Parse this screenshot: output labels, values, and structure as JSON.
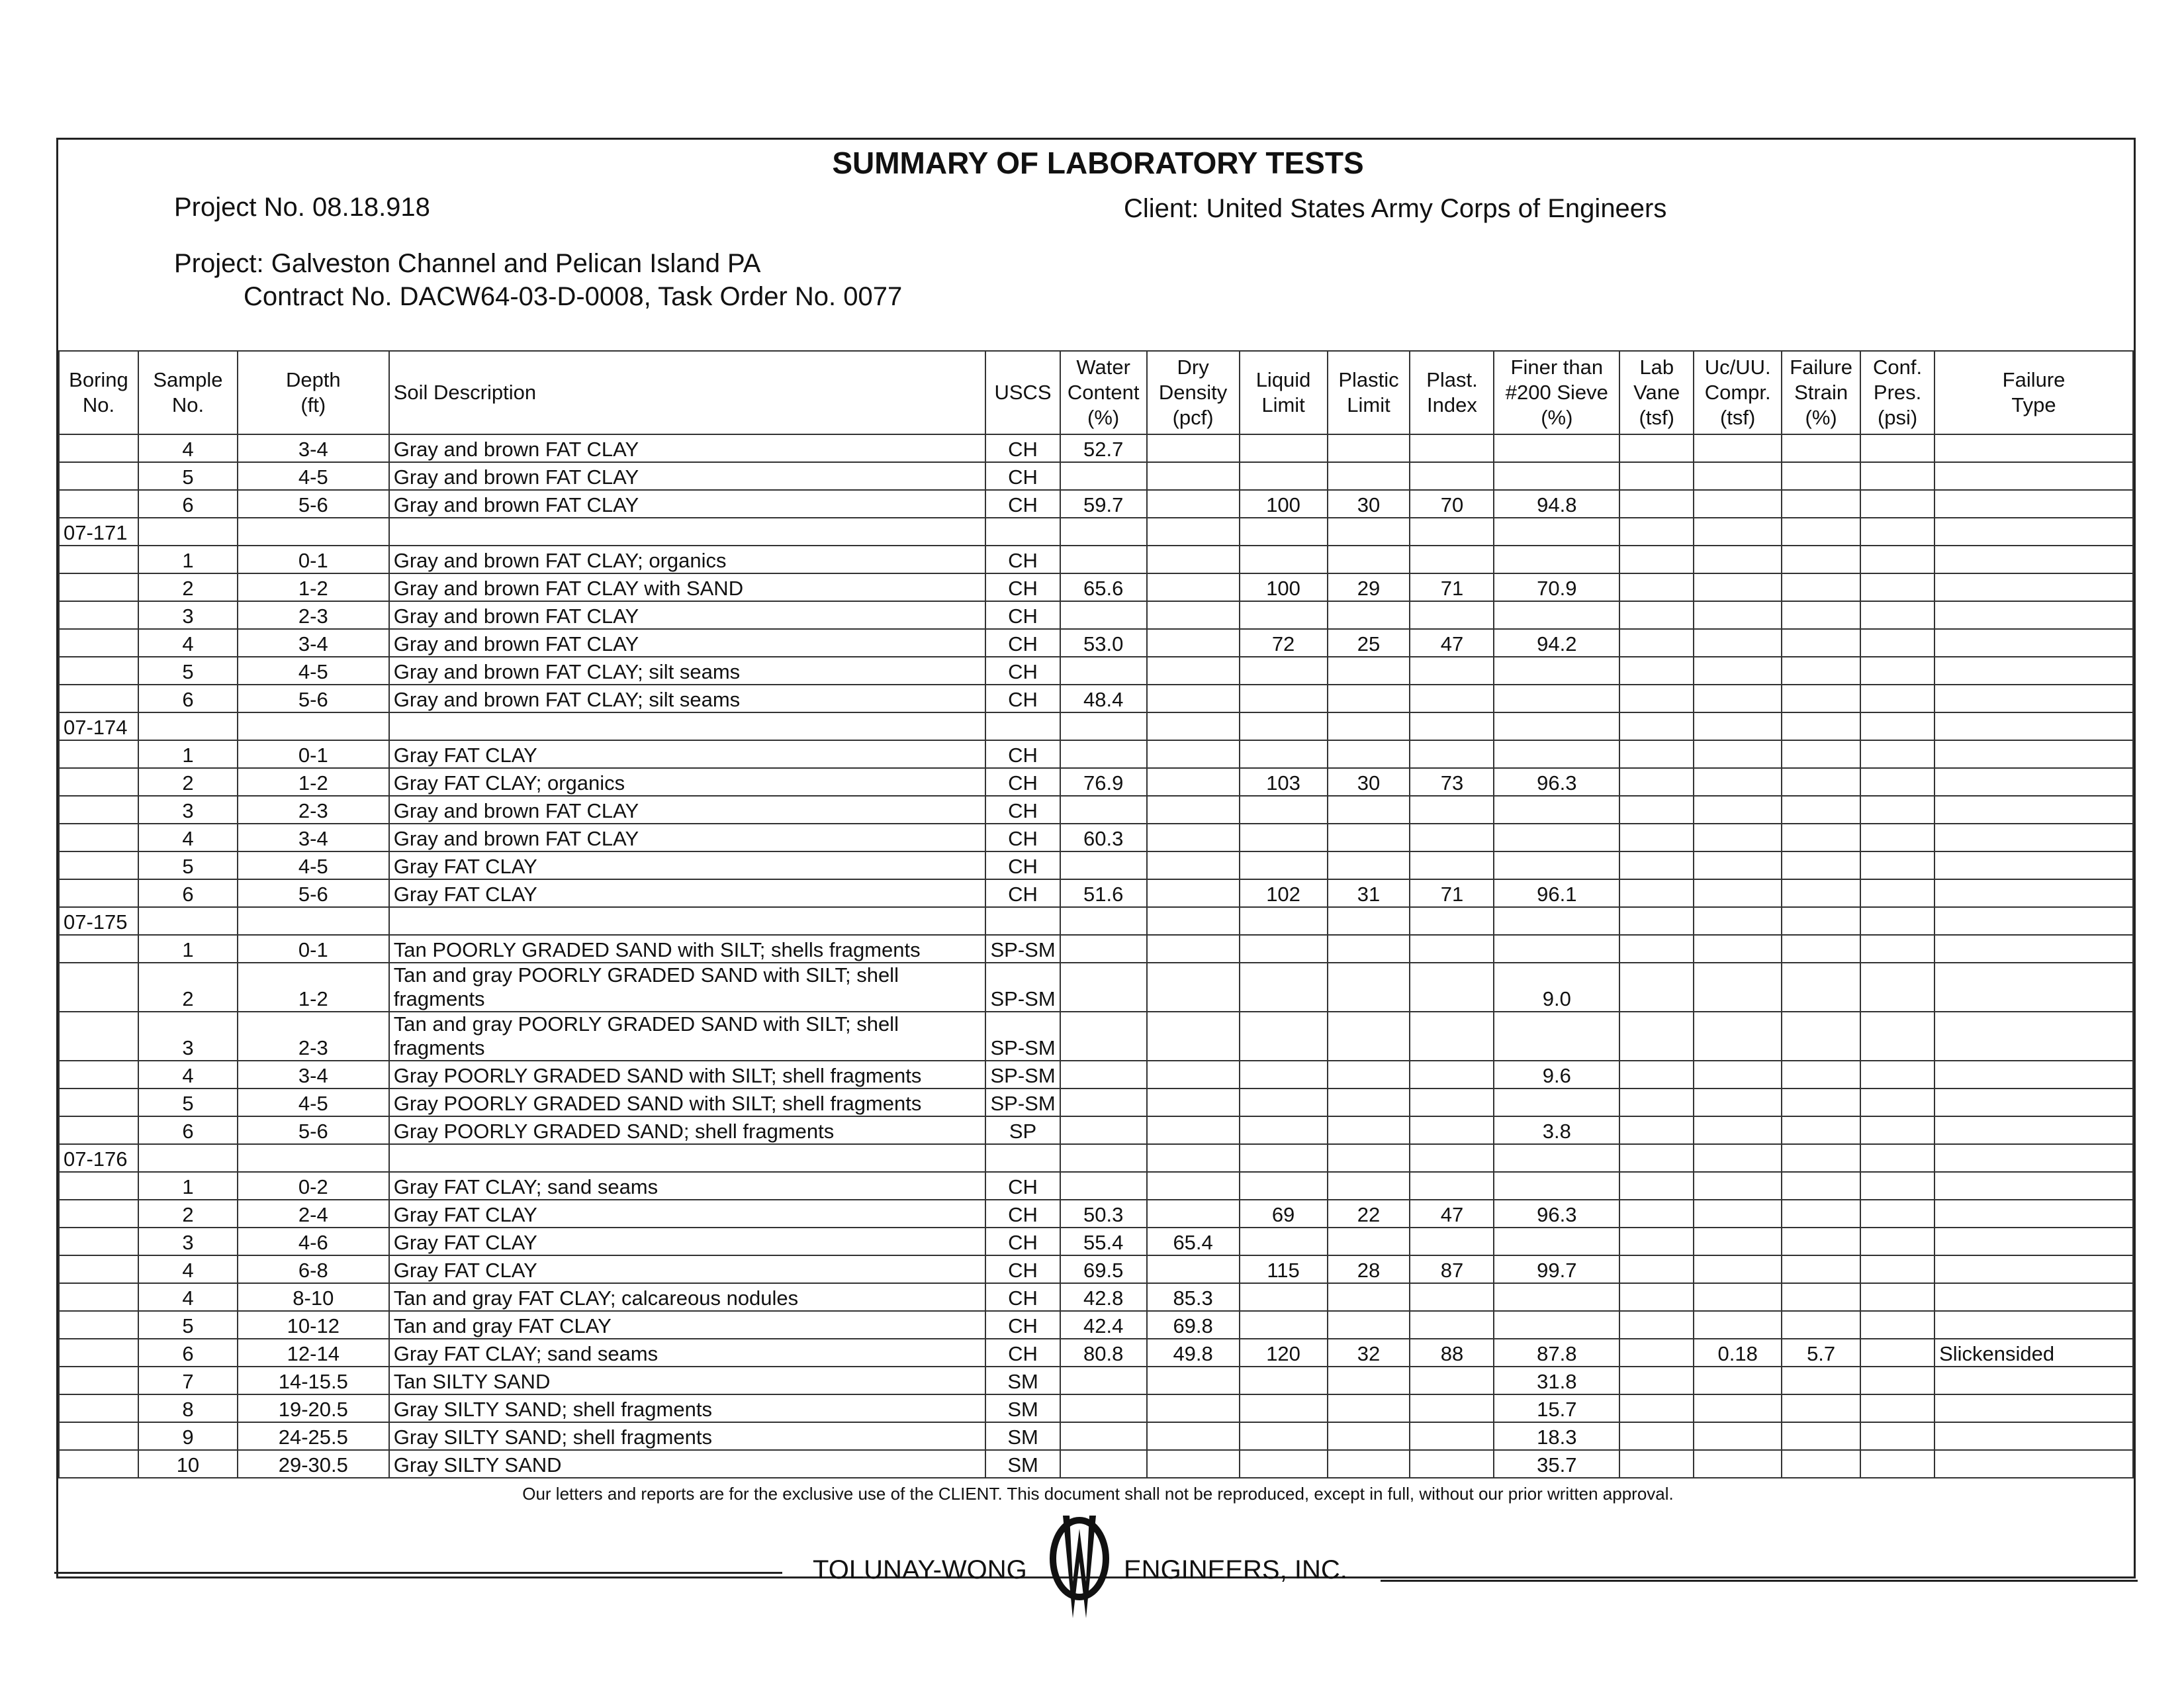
{
  "title": "SUMMARY OF LABORATORY TESTS",
  "project_no": "Project No. 08.18.918",
  "client": "Client: United States Army Corps of Engineers",
  "project": "Project: Galveston Channel and Pelican Island PA",
  "contract": "Contract No. DACW64-03-D-0008, Task Order No. 0077",
  "columns": [
    "Boring\nNo.",
    "Sample\nNo.",
    "Depth\n(ft)",
    "Soil Description",
    "USCS",
    "Water\nContent\n(%)",
    "Dry\nDensity\n(pcf)",
    "Liquid\nLimit",
    "Plastic\nLimit",
    "Plast.\nIndex",
    "Finer than\n#200 Sieve\n(%)",
    "Lab\nVane\n(tsf)",
    "Uc/UU.\nCompr.\n(tsf)",
    "Failure\nStrain\n(%)",
    "Conf.\nPres.\n(psi)",
    "Failure\nType"
  ],
  "rows": [
    [
      "",
      "4",
      "3-4",
      "Gray and brown FAT CLAY",
      "CH",
      "52.7",
      "",
      "",
      "",
      "",
      "",
      "",
      "",
      "",
      "",
      ""
    ],
    [
      "",
      "5",
      "4-5",
      "Gray and brown FAT CLAY",
      "CH",
      "",
      "",
      "",
      "",
      "",
      "",
      "",
      "",
      "",
      "",
      ""
    ],
    [
      "",
      "6",
      "5-6",
      "Gray and brown FAT CLAY",
      "CH",
      "59.7",
      "",
      "100",
      "30",
      "70",
      "94.8",
      "",
      "",
      "",
      "",
      ""
    ],
    [
      "07-171",
      "",
      "",
      "",
      "",
      "",
      "",
      "",
      "",
      "",
      "",
      "",
      "",
      "",
      "",
      ""
    ],
    [
      "",
      "1",
      "0-1",
      "Gray and brown FAT CLAY; organics",
      "CH",
      "",
      "",
      "",
      "",
      "",
      "",
      "",
      "",
      "",
      "",
      ""
    ],
    [
      "",
      "2",
      "1-2",
      "Gray and brown FAT CLAY with SAND",
      "CH",
      "65.6",
      "",
      "100",
      "29",
      "71",
      "70.9",
      "",
      "",
      "",
      "",
      ""
    ],
    [
      "",
      "3",
      "2-3",
      "Gray and brown FAT CLAY",
      "CH",
      "",
      "",
      "",
      "",
      "",
      "",
      "",
      "",
      "",
      "",
      ""
    ],
    [
      "",
      "4",
      "3-4",
      "Gray and brown FAT CLAY",
      "CH",
      "53.0",
      "",
      "72",
      "25",
      "47",
      "94.2",
      "",
      "",
      "",
      "",
      ""
    ],
    [
      "",
      "5",
      "4-5",
      "Gray and brown FAT CLAY; silt seams",
      "CH",
      "",
      "",
      "",
      "",
      "",
      "",
      "",
      "",
      "",
      "",
      ""
    ],
    [
      "",
      "6",
      "5-6",
      "Gray and brown FAT CLAY; silt seams",
      "CH",
      "48.4",
      "",
      "",
      "",
      "",
      "",
      "",
      "",
      "",
      "",
      ""
    ],
    [
      "07-174",
      "",
      "",
      "",
      "",
      "",
      "",
      "",
      "",
      "",
      "",
      "",
      "",
      "",
      "",
      ""
    ],
    [
      "",
      "1",
      "0-1",
      "Gray FAT CLAY",
      "CH",
      "",
      "",
      "",
      "",
      "",
      "",
      "",
      "",
      "",
      "",
      ""
    ],
    [
      "",
      "2",
      "1-2",
      "Gray FAT CLAY; organics",
      "CH",
      "76.9",
      "",
      "103",
      "30",
      "73",
      "96.3",
      "",
      "",
      "",
      "",
      ""
    ],
    [
      "",
      "3",
      "2-3",
      "Gray and brown FAT CLAY",
      "CH",
      "",
      "",
      "",
      "",
      "",
      "",
      "",
      "",
      "",
      "",
      ""
    ],
    [
      "",
      "4",
      "3-4",
      "Gray and brown FAT CLAY",
      "CH",
      "60.3",
      "",
      "",
      "",
      "",
      "",
      "",
      "",
      "",
      "",
      ""
    ],
    [
      "",
      "5",
      "4-5",
      "Gray FAT CLAY",
      "CH",
      "",
      "",
      "",
      "",
      "",
      "",
      "",
      "",
      "",
      "",
      ""
    ],
    [
      "",
      "6",
      "5-6",
      "Gray FAT CLAY",
      "CH",
      "51.6",
      "",
      "102",
      "31",
      "71",
      "96.1",
      "",
      "",
      "",
      "",
      ""
    ],
    [
      "07-175",
      "",
      "",
      "",
      "",
      "",
      "",
      "",
      "",
      "",
      "",
      "",
      "",
      "",
      "",
      ""
    ],
    [
      "",
      "1",
      "0-1",
      "Tan POORLY GRADED SAND with SILT; shells fragments",
      "SP-SM",
      "",
      "",
      "",
      "",
      "",
      "",
      "",
      "",
      "",
      "",
      ""
    ],
    [
      "",
      "2",
      "1-2",
      "Tan and gray POORLY GRADED SAND with SILT; shell fragments",
      "SP-SM",
      "",
      "",
      "",
      "",
      "",
      "9.0",
      "",
      "",
      "",
      "",
      ""
    ],
    [
      "",
      "3",
      "2-3",
      "Tan and gray POORLY GRADED SAND with SILT; shell fragments",
      "SP-SM",
      "",
      "",
      "",
      "",
      "",
      "",
      "",
      "",
      "",
      "",
      ""
    ],
    [
      "",
      "4",
      "3-4",
      "Gray POORLY GRADED SAND with SILT; shell fragments",
      "SP-SM",
      "",
      "",
      "",
      "",
      "",
      "9.6",
      "",
      "",
      "",
      "",
      ""
    ],
    [
      "",
      "5",
      "4-5",
      "Gray POORLY GRADED SAND with SILT; shell fragments",
      "SP-SM",
      "",
      "",
      "",
      "",
      "",
      "",
      "",
      "",
      "",
      "",
      ""
    ],
    [
      "",
      "6",
      "5-6",
      "Gray POORLY GRADED SAND; shell fragments",
      "SP",
      "",
      "",
      "",
      "",
      "",
      "3.8",
      "",
      "",
      "",
      "",
      ""
    ],
    [
      "07-176",
      "",
      "",
      "",
      "",
      "",
      "",
      "",
      "",
      "",
      "",
      "",
      "",
      "",
      "",
      ""
    ],
    [
      "",
      "1",
      "0-2",
      "Gray FAT CLAY; sand seams",
      "CH",
      "",
      "",
      "",
      "",
      "",
      "",
      "",
      "",
      "",
      "",
      ""
    ],
    [
      "",
      "2",
      "2-4",
      "Gray FAT CLAY",
      "CH",
      "50.3",
      "",
      "69",
      "22",
      "47",
      "96.3",
      "",
      "",
      "",
      "",
      ""
    ],
    [
      "",
      "3",
      "4-6",
      "Gray FAT CLAY",
      "CH",
      "55.4",
      "65.4",
      "",
      "",
      "",
      "",
      "",
      "",
      "",
      "",
      ""
    ],
    [
      "",
      "4",
      "6-8",
      "Gray FAT CLAY",
      "CH",
      "69.5",
      "",
      "115",
      "28",
      "87",
      "99.7",
      "",
      "",
      "",
      "",
      ""
    ],
    [
      "",
      "4",
      "8-10",
      "Tan and gray FAT CLAY; calcareous nodules",
      "CH",
      "42.8",
      "85.3",
      "",
      "",
      "",
      "",
      "",
      "",
      "",
      "",
      ""
    ],
    [
      "",
      "5",
      "10-12",
      "Tan and gray FAT CLAY",
      "CH",
      "42.4",
      "69.8",
      "",
      "",
      "",
      "",
      "",
      "",
      "",
      "",
      ""
    ],
    [
      "",
      "6",
      "12-14",
      "Gray FAT CLAY; sand seams",
      "CH",
      "80.8",
      "49.8",
      "120",
      "32",
      "88",
      "87.8",
      "",
      "0.18",
      "5.7",
      "",
      "Slickensided"
    ],
    [
      "",
      "7",
      "14-15.5",
      "Tan SILTY SAND",
      "SM",
      "",
      "",
      "",
      "",
      "",
      "31.8",
      "",
      "",
      "",
      "",
      ""
    ],
    [
      "",
      "8",
      "19-20.5",
      "Gray SILTY SAND; shell fragments",
      "SM",
      "",
      "",
      "",
      "",
      "",
      "15.7",
      "",
      "",
      "",
      "",
      ""
    ],
    [
      "",
      "9",
      "24-25.5",
      "Gray SILTY SAND; shell fragments",
      "SM",
      "",
      "",
      "",
      "",
      "",
      "18.3",
      "",
      "",
      "",
      "",
      ""
    ],
    [
      "",
      "10",
      "29-30.5",
      "Gray SILTY SAND",
      "SM",
      "",
      "",
      "",
      "",
      "",
      "35.7",
      "",
      "",
      "",
      "",
      ""
    ]
  ],
  "disclaimer": "Our letters and reports are for the exclusive use of the CLIENT. This document shall not be reproduced, except in full, without our prior written approval.",
  "company_left": "TOLUNAY-WONG",
  "company_right": "ENGINEERS, INC.",
  "logo_text": "TW"
}
